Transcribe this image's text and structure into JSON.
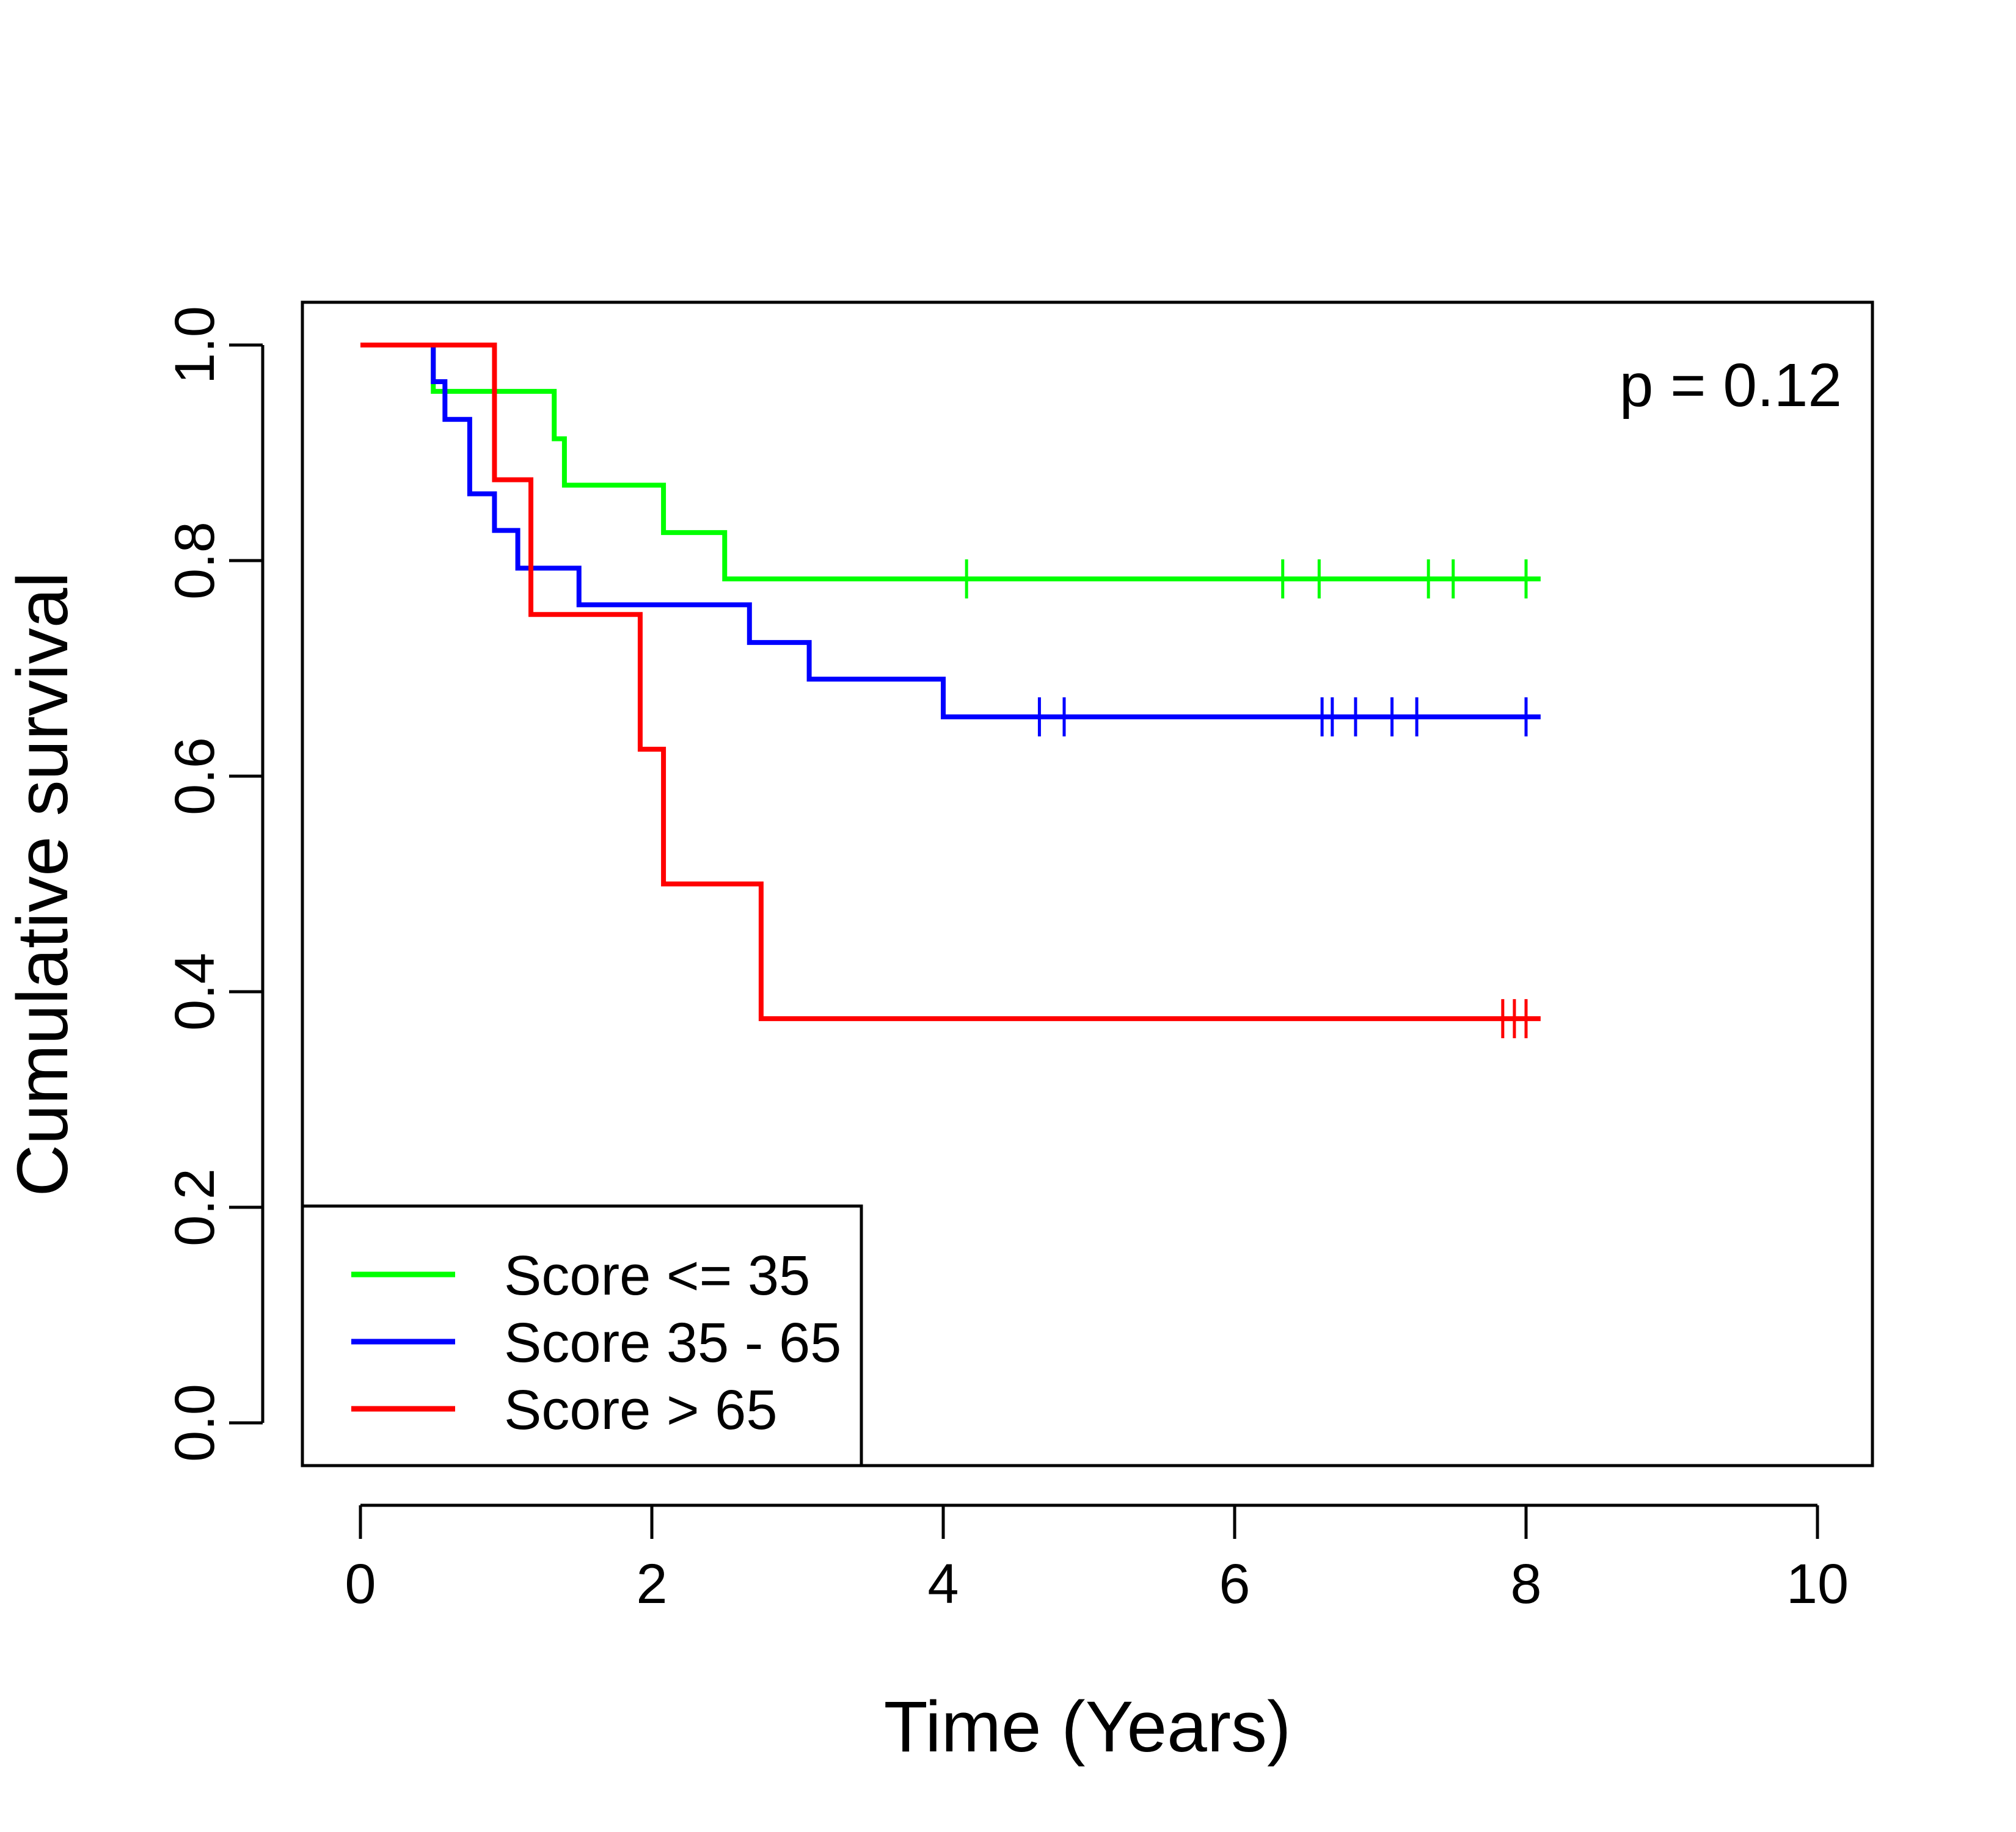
{
  "chart_data": {
    "type": "line",
    "title": "",
    "xlabel": "Time (Years)",
    "ylabel": "Cumulative survival",
    "xlim": [
      0,
      10
    ],
    "ylim": [
      0,
      1
    ],
    "xticks": [
      "0",
      "2",
      "4",
      "6",
      "8",
      "10"
    ],
    "yticks": [
      "0.0",
      "0.2",
      "0.4",
      "0.6",
      "0.8",
      "1.0"
    ],
    "grid": false,
    "legend_position": "bottom-left",
    "annotation": "p = 0.12",
    "series": [
      {
        "name": "Score <= 35",
        "color": "#00ff00",
        "steps": [
          [
            0.5,
            1.0
          ],
          [
            0.5,
            0.957
          ],
          [
            1.33,
            0.913
          ],
          [
            1.4,
            0.87
          ],
          [
            2.08,
            0.826
          ],
          [
            2.5,
            0.783
          ]
        ],
        "end_x": 8.1,
        "censor_x": [
          4.16,
          6.33,
          6.58,
          7.33,
          7.5,
          8.0
        ]
      },
      {
        "name": "Score 35 - 65",
        "color": "#0000ff",
        "steps": [
          [
            0.5,
            1.0
          ],
          [
            0.5,
            0.966
          ],
          [
            0.58,
            0.931
          ],
          [
            0.75,
            0.862
          ],
          [
            0.92,
            0.828
          ],
          [
            1.08,
            0.793
          ],
          [
            1.5,
            0.759
          ],
          [
            2.67,
            0.724
          ],
          [
            3.08,
            0.69
          ],
          [
            4.0,
            0.655
          ]
        ],
        "end_x": 8.1,
        "censor_x": [
          4.66,
          4.83,
          6.6,
          6.67,
          6.83,
          7.08,
          7.25,
          8.0
        ]
      },
      {
        "name": "Score > 65",
        "color": "#ff0000",
        "steps": [
          [
            0.0,
            1.0
          ],
          [
            0.92,
            0.875
          ],
          [
            1.17,
            0.75
          ],
          [
            1.92,
            0.625
          ],
          [
            2.08,
            0.5
          ],
          [
            2.75,
            0.375
          ]
        ],
        "end_x": 8.1,
        "censor_x": [
          7.84,
          7.92,
          8.0
        ]
      }
    ]
  }
}
